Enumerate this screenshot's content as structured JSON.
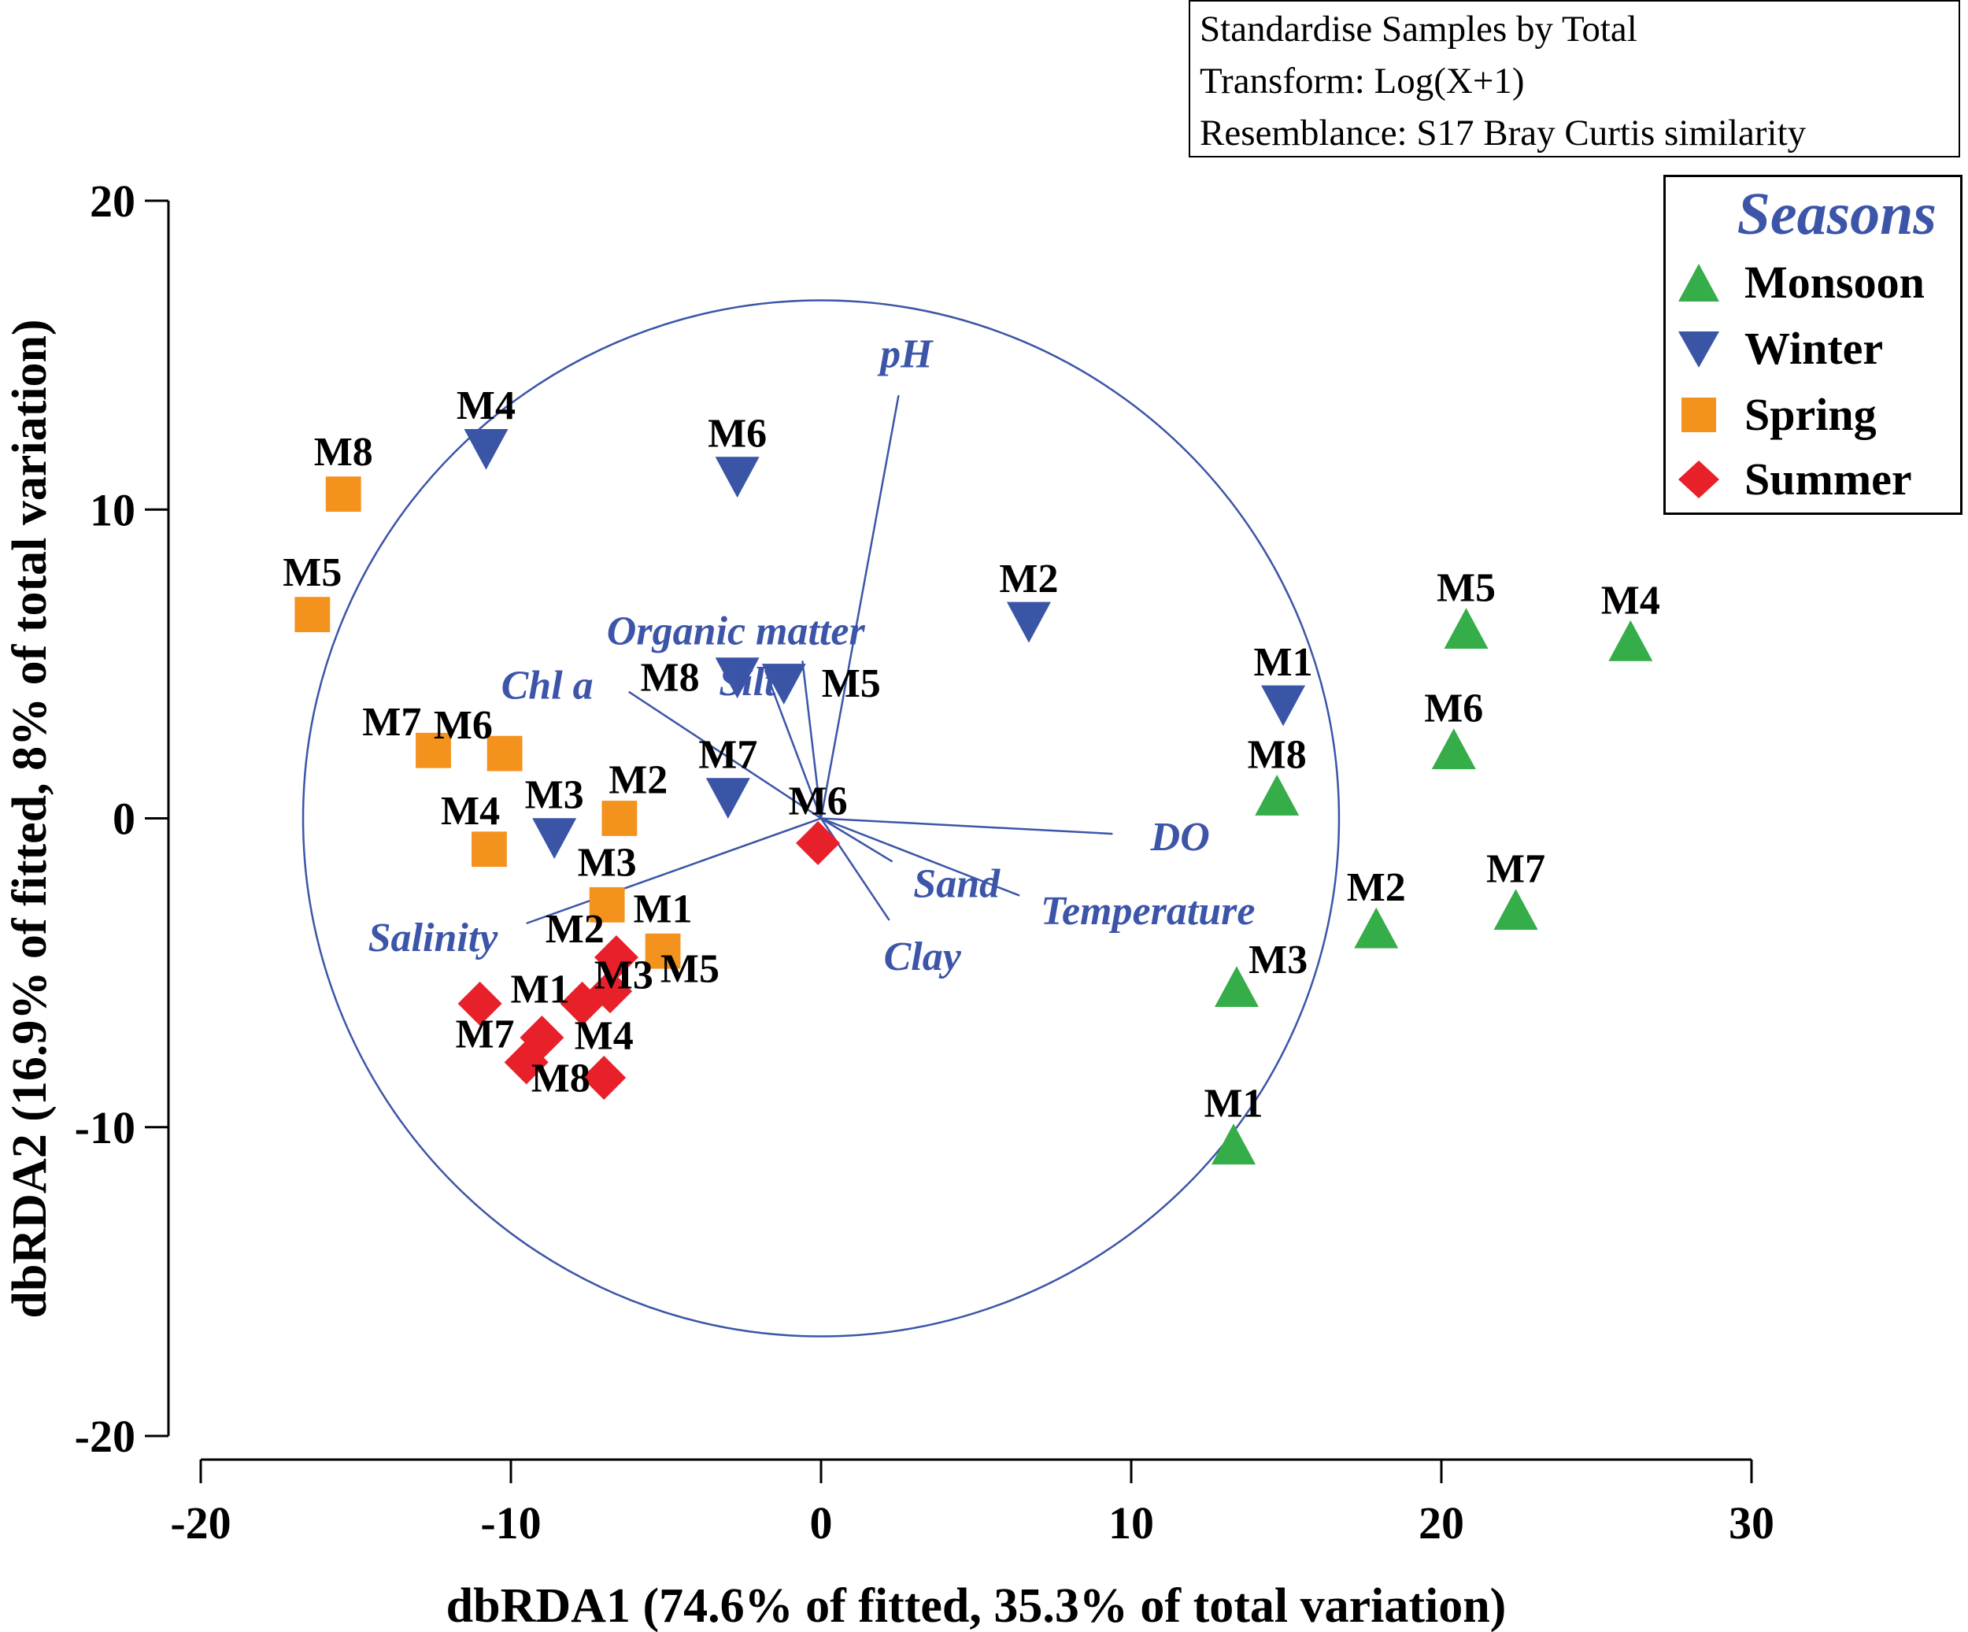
{
  "chart_data": {
    "type": "scatter",
    "xlabel": "dbRDA1 (74.6% of fitted, 35.3% of total variation)",
    "ylabel": "dbRDA2 (16.9% of fitted, 8% of total variation)",
    "xlim": [
      -20,
      30
    ],
    "ylim": [
      -20,
      20
    ],
    "xticks": [
      "-20",
      "-10",
      "0",
      "10",
      "20",
      "30"
    ],
    "yticks": [
      "20",
      "10",
      "0",
      "-10",
      "-20"
    ],
    "xtick_values": [
      -20,
      -10,
      0,
      10,
      20,
      30
    ],
    "ytick_values": [
      20,
      10,
      0,
      -10,
      -20
    ],
    "grid": false,
    "notes": [
      "Standardise Samples by Total",
      "Transform: Log(X+1)",
      "Resemblance: S17 Bray Curtis similarity"
    ],
    "legend": {
      "title": "Seasons",
      "placement": "top-right"
    },
    "correlation_circle_radius": 16.7,
    "series": [
      {
        "name": "Monsoon",
        "marker": "triangle-up",
        "color": "#35ad48",
        "points": [
          {
            "label": "M1",
            "x": 13.3,
            "y": -10.6
          },
          {
            "label": "M2",
            "x": 17.9,
            "y": -3.6
          },
          {
            "label": "M3",
            "x": 13.4,
            "y": -5.5
          },
          {
            "label": "M4",
            "x": 26.1,
            "y": 5.7
          },
          {
            "label": "M5",
            "x": 20.8,
            "y": 6.1
          },
          {
            "label": "M6",
            "x": 20.4,
            "y": 2.2
          },
          {
            "label": "M7",
            "x": 22.4,
            "y": -3.0
          },
          {
            "label": "M8",
            "x": 14.7,
            "y": 0.7
          }
        ]
      },
      {
        "name": "Winter",
        "marker": "triangle-down",
        "color": "#3a54a6",
        "points": [
          {
            "label": "M1",
            "x": 14.9,
            "y": 3.7
          },
          {
            "label": "M2",
            "x": 6.7,
            "y": 6.4
          },
          {
            "label": "M3",
            "x": -8.6,
            "y": -0.6
          },
          {
            "label": "M4",
            "x": -10.8,
            "y": 12.0
          },
          {
            "label": "M5",
            "x": -1.2,
            "y": 4.4
          },
          {
            "label": "M6",
            "x": -2.7,
            "y": 11.1
          },
          {
            "label": "M7",
            "x": -3.0,
            "y": 0.7
          },
          {
            "label": "M8",
            "x": -2.7,
            "y": 4.6
          }
        ]
      },
      {
        "name": "Spring",
        "marker": "square",
        "color": "#f4921e",
        "points": [
          {
            "label": "M1",
            "x": -5.1,
            "y": -4.3
          },
          {
            "label": "M2",
            "x": -6.5,
            "y": 0.0
          },
          {
            "label": "M3",
            "x": -6.9,
            "y": -2.8
          },
          {
            "label": "M4",
            "x": -10.7,
            "y": -1.0
          },
          {
            "label": "M5",
            "x": -16.4,
            "y": 6.6
          },
          {
            "label": "M6",
            "x": -10.2,
            "y": 2.1
          },
          {
            "label": "M7",
            "x": -12.5,
            "y": 2.2
          },
          {
            "label": "M8",
            "x": -15.4,
            "y": 10.5
          }
        ]
      },
      {
        "name": "Summer",
        "marker": "diamond",
        "color": "#e8202a",
        "points": [
          {
            "label": "M1",
            "x": -11.0,
            "y": -6.0
          },
          {
            "label": "M2",
            "x": -6.6,
            "y": -4.5
          },
          {
            "label": "M3",
            "x": -7.7,
            "y": -6.0
          },
          {
            "label": "M4",
            "x": -7.0,
            "y": -8.4
          },
          {
            "label": "M5",
            "x": -6.8,
            "y": -5.6
          },
          {
            "label": "M6",
            "x": -0.1,
            "y": -0.8
          },
          {
            "label": "M7",
            "x": -9.5,
            "y": -7.9
          },
          {
            "label": "M8",
            "x": -9.0,
            "y": -7.1
          }
        ]
      }
    ],
    "vectors": [
      {
        "name": "pH",
        "x": 2.5,
        "y": 13.7
      },
      {
        "name": "Organic matter",
        "x": -1.8,
        "y": 4.8
      },
      {
        "name": "Chl a",
        "x": -6.2,
        "y": 4.1
      },
      {
        "name": "Silt",
        "x": -0.6,
        "y": 5.1
      },
      {
        "name": "DO",
        "x": 9.4,
        "y": -0.5
      },
      {
        "name": "Temperature",
        "x": 6.4,
        "y": -2.5
      },
      {
        "name": "Sand",
        "x": 2.3,
        "y": -1.4
      },
      {
        "name": "Clay",
        "x": 2.2,
        "y": -3.3
      },
      {
        "name": "Salinity",
        "x": -9.5,
        "y": -3.4
      }
    ],
    "vector_color": "#3c55a8"
  }
}
